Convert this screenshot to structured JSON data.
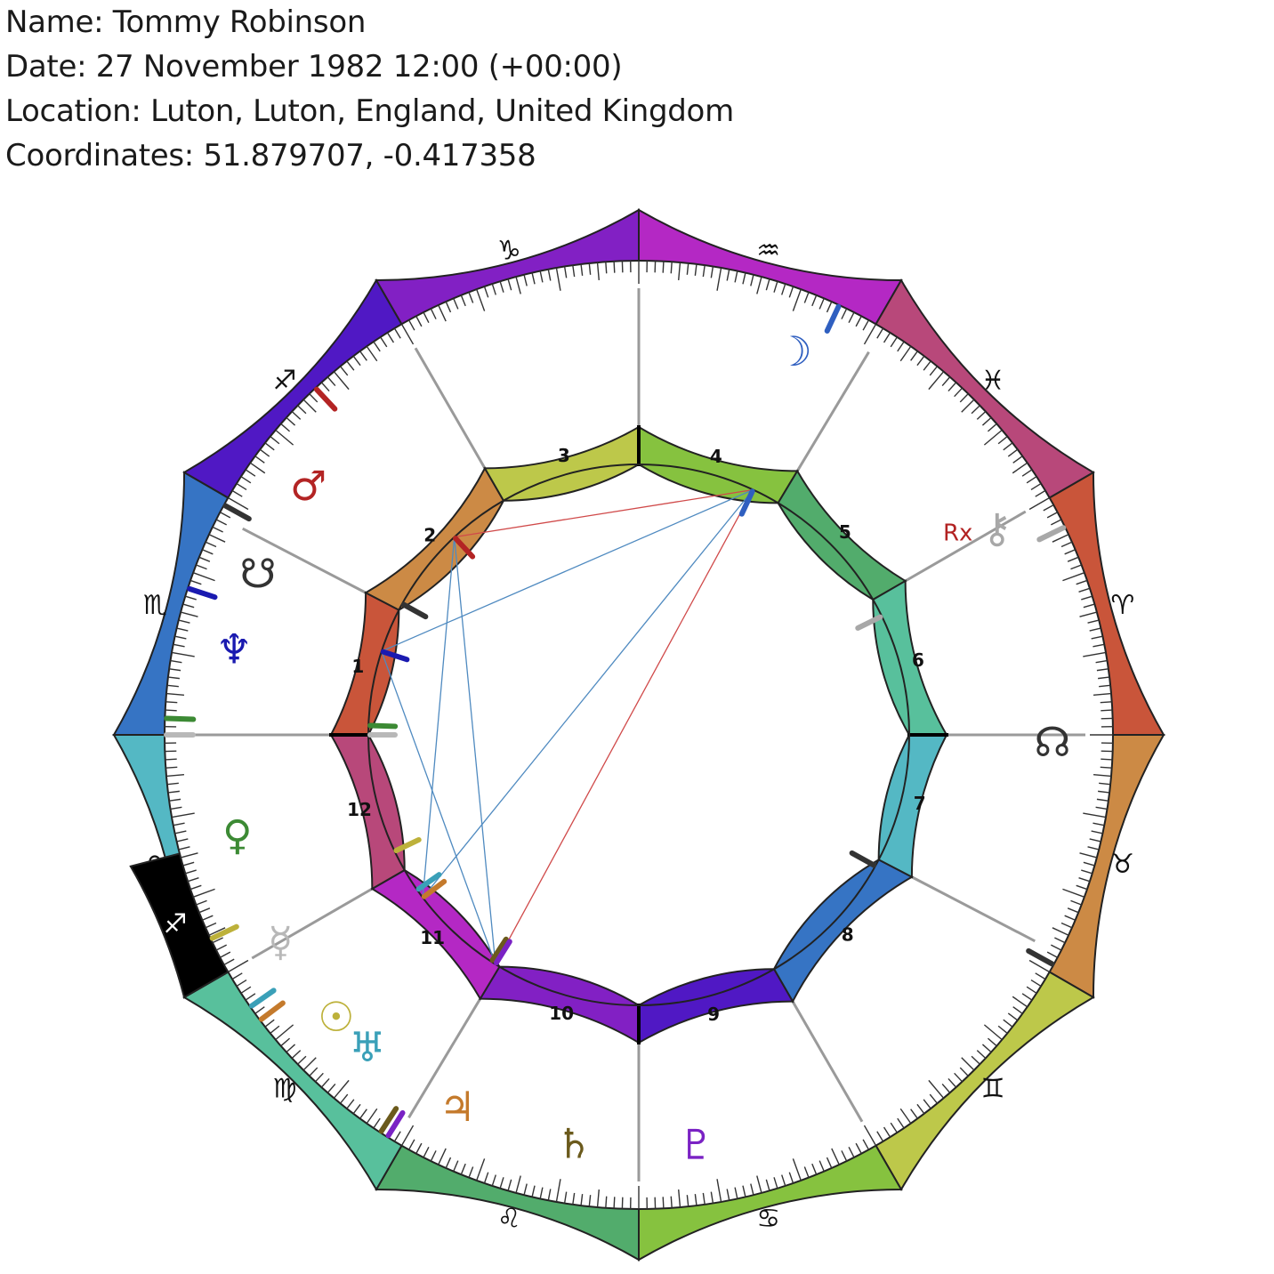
{
  "header": {
    "name_line": "Name: Tommy Robinson",
    "date_line": "Date: 27 November 1982 12:00 (+00:00)",
    "location_line": "Location: Luton, Luton, England, United Kingdom",
    "coordinates_line": "Coordinates: 51.879707, -0.417358"
  },
  "chart_meta": {
    "ascendant_longitude": 210.0,
    "ascendant_sign": "Scorpio"
  },
  "signs": [
    {
      "name": "Aries",
      "glyph": "♈",
      "color": "#c9553a"
    },
    {
      "name": "Taurus",
      "glyph": "♉",
      "color": "#cc8a45"
    },
    {
      "name": "Gemini",
      "glyph": "♊",
      "color": "#bdc84a"
    },
    {
      "name": "Cancer",
      "glyph": "♋",
      "color": "#86c23f"
    },
    {
      "name": "Leo",
      "glyph": "♌",
      "color": "#52ac6c"
    },
    {
      "name": "Virgo",
      "glyph": "♍",
      "color": "#58c09c"
    },
    {
      "name": "Libra",
      "glyph": "♎",
      "color": "#54b8c4"
    },
    {
      "name": "Scorpio",
      "glyph": "♏",
      "color": "#3674c4"
    },
    {
      "name": "Sagittarius",
      "glyph": "♐",
      "color": "#5018c4"
    },
    {
      "name": "Capricorn",
      "glyph": "♑",
      "color": "#8220c4"
    },
    {
      "name": "Aquarius",
      "glyph": "♒",
      "color": "#b428c4"
    },
    {
      "name": "Pisces",
      "glyph": "♓",
      "color": "#b8487a"
    }
  ],
  "houses": [
    {
      "number": "1",
      "cusp": 210.0,
      "color": "#c9553a"
    },
    {
      "number": "2",
      "cusp": 237.5,
      "color": "#cc8a45"
    },
    {
      "number": "3",
      "cusp": 270.0,
      "color": "#bdc84a"
    },
    {
      "number": "4",
      "cusp": 300.0,
      "color": "#86c23f"
    },
    {
      "number": "5",
      "cusp": 331.0,
      "color": "#52ac6c"
    },
    {
      "number": "6",
      "cusp": 0.0,
      "color": "#58c09c"
    },
    {
      "number": "7",
      "cusp": 30.0,
      "color": "#54b8c4"
    },
    {
      "number": "8",
      "cusp": 57.5,
      "color": "#3674c4"
    },
    {
      "number": "9",
      "cusp": 90.0,
      "color": "#5018c4"
    },
    {
      "number": "10",
      "cusp": 120.0,
      "color": "#8220c4"
    },
    {
      "number": "11",
      "cusp": 151.0,
      "color": "#b428c4"
    },
    {
      "number": "12",
      "cusp": 180.0,
      "color": "#b8487a"
    }
  ],
  "interceptions": [
    {
      "sign": "Sagittarius",
      "glyph": "♐",
      "from": 180.0,
      "to": 195.5,
      "color": "#000000"
    }
  ],
  "planets": [
    {
      "name": "Sun",
      "glyph": "☉",
      "longitude": 184.5,
      "color": "#bdb13a",
      "retrograde": false
    },
    {
      "name": "Moon",
      "glyph": "☽",
      "longitude": 325.0,
      "color": "#2f5fc0",
      "retrograde": false
    },
    {
      "name": "Mercury",
      "glyph": "☿",
      "longitude": 210.0,
      "color": "#b8b8b8",
      "retrograde": false
    },
    {
      "name": "Venus",
      "glyph": "♀",
      "longitude": 212.0,
      "color": "#3c8a34",
      "retrograde": false
    },
    {
      "name": "Mars",
      "glyph": "♂",
      "longitude": 257.0,
      "color": "#b32424",
      "retrograde": false
    },
    {
      "name": "Jupiter",
      "glyph": "♃",
      "longitude": 173.0,
      "color": "#c47a2c",
      "retrograde": false
    },
    {
      "name": "Saturn",
      "glyph": "♄",
      "longitude": 153.0,
      "color": "#6b5a1c",
      "retrograde": false
    },
    {
      "name": "Uranus",
      "glyph": "♅",
      "longitude": 175.0,
      "color": "#3aa0b8",
      "retrograde": false
    },
    {
      "name": "Neptune",
      "glyph": "♆",
      "longitude": 228.0,
      "color": "#1a1ab0",
      "retrograde": false
    },
    {
      "name": "Pluto",
      "glyph": "♇",
      "longitude": 152.0,
      "color": "#7a22c4",
      "retrograde": false
    },
    {
      "name": "North Node",
      "glyph": "☊",
      "longitude": 59.0,
      "color": "#333333",
      "retrograde": false
    },
    {
      "name": "South Node",
      "glyph": "☋",
      "longitude": 239.0,
      "color": "#333333",
      "retrograde": false
    },
    {
      "name": "Chiron",
      "glyph": "⚷",
      "longitude": 4.0,
      "color": "#a8a8a8",
      "retrograde": true,
      "retro_label": "Rx"
    }
  ],
  "planet_positions": {
    "Sun": 167,
    "Moon": 322,
    "Mercury": 180,
    "Venus": 196,
    "Mars": 247,
    "Jupiter": 146,
    "Saturn": 129,
    "Uranus": 161,
    "Neptune": 222,
    "Pluto": 112,
    "North Node": 31,
    "South Node": 233,
    "Chiron": 0
  },
  "aspects": [
    {
      "from": "Pluto",
      "to": "Moon",
      "color": "#d04a4a"
    },
    {
      "from": "Mars",
      "to": "Moon",
      "color": "#d04a4a"
    },
    {
      "from": "Pluto",
      "to": "Mars",
      "color": "#4f8ac0"
    },
    {
      "from": "Pluto",
      "to": "Neptune",
      "color": "#4f8ac0"
    },
    {
      "from": "Neptune",
      "to": "Moon",
      "color": "#4f8ac0"
    },
    {
      "from": "Jupiter",
      "to": "Moon",
      "color": "#4f8ac0"
    },
    {
      "from": "Jupiter",
      "to": "Mars",
      "color": "#4f8ac0"
    }
  ]
}
